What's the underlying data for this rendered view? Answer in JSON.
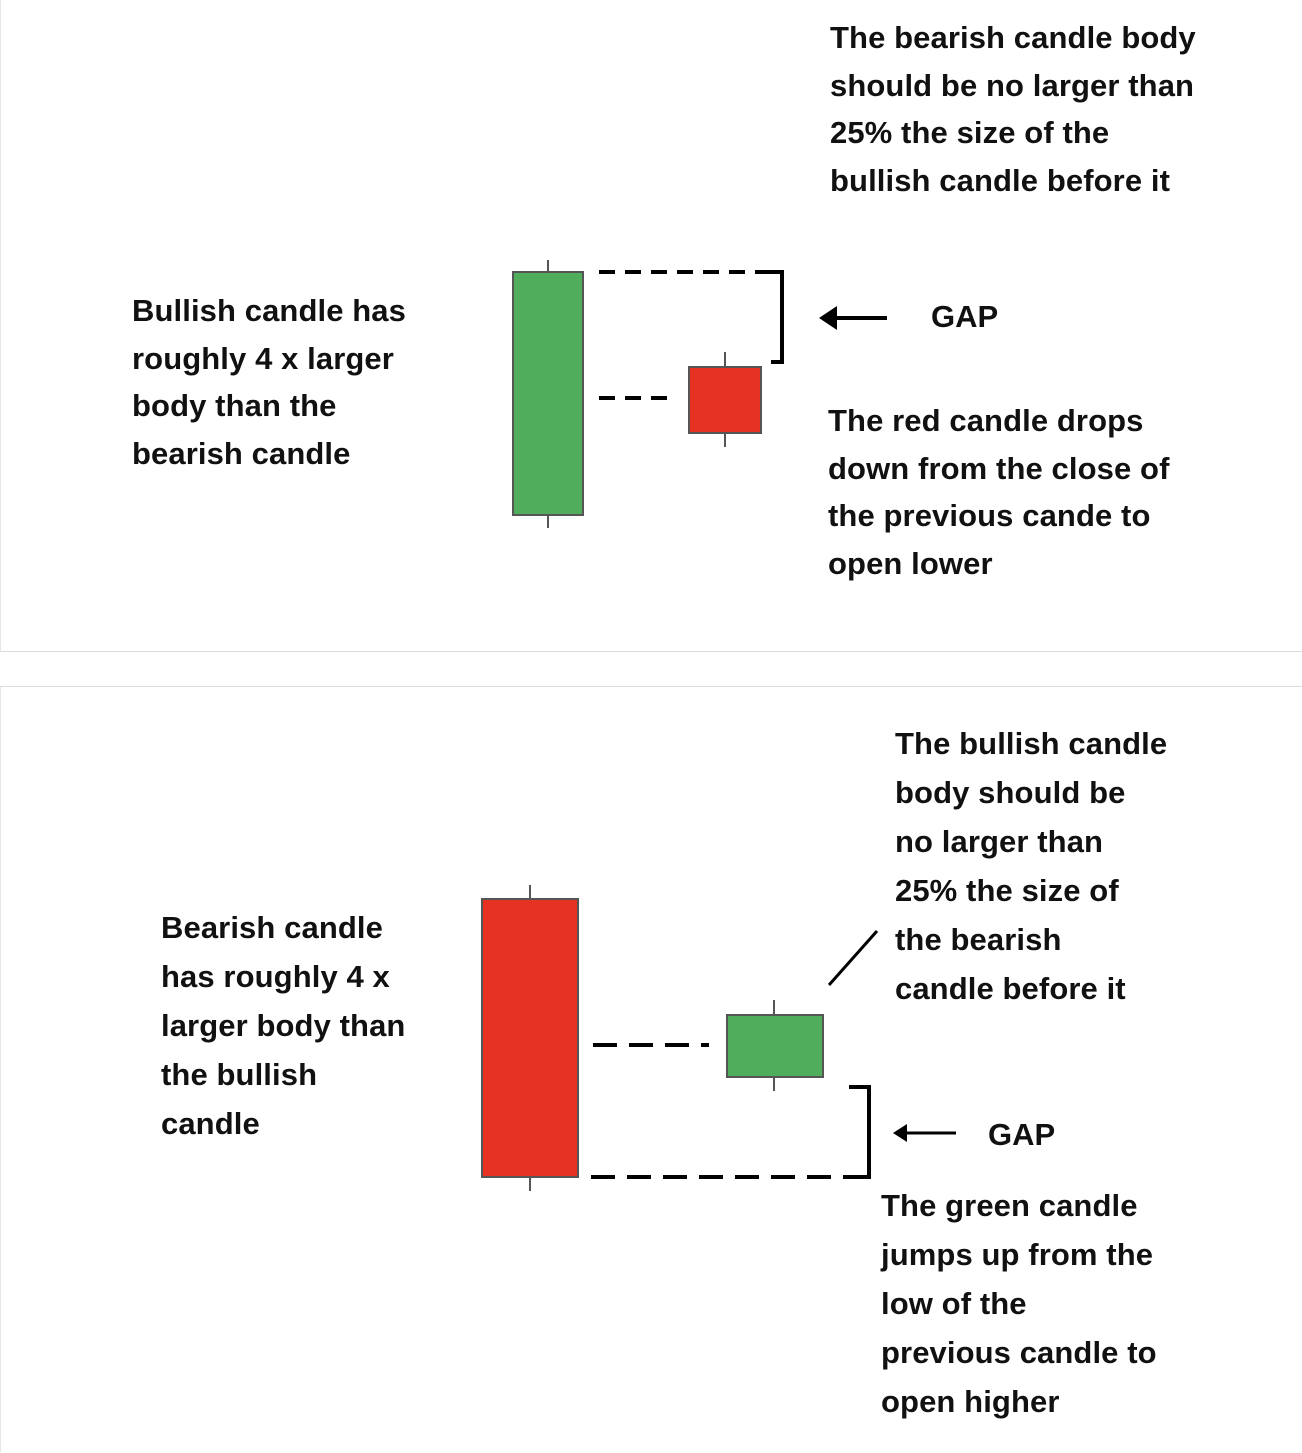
{
  "colors": {
    "bullish": "#4fad5b",
    "bearish": "#e63222",
    "outline": "#555555",
    "ink": "#000000"
  },
  "top_panel": {
    "top_note": "The bearish candle body\nshould be no larger than\n25% the size of the\nbullish candle before it",
    "left_note": "Bullish candle has\nroughly 4 x larger\nbody than the\nbearish candle",
    "gap_label": "GAP",
    "bottom_note": "The red candle drops\ndown from the close of\nthe previous cande to\nopen lower",
    "gap_arrow_icon": "left-arrow-icon"
  },
  "bottom_panel": {
    "top_note": "The bullish candle\nbody should be\nno larger than\n25% the size of\nthe bearish\ncandle before it",
    "left_note": "Bearish candle\nhas roughly 4 x\nlarger body than\nthe bullish\ncandle",
    "gap_label": "GAP",
    "bottom_note": "The green candle\njumps up from the\nlow of the\nprevious candle to\nopen higher",
    "gap_arrow_icon": "left-arrow-icon"
  }
}
